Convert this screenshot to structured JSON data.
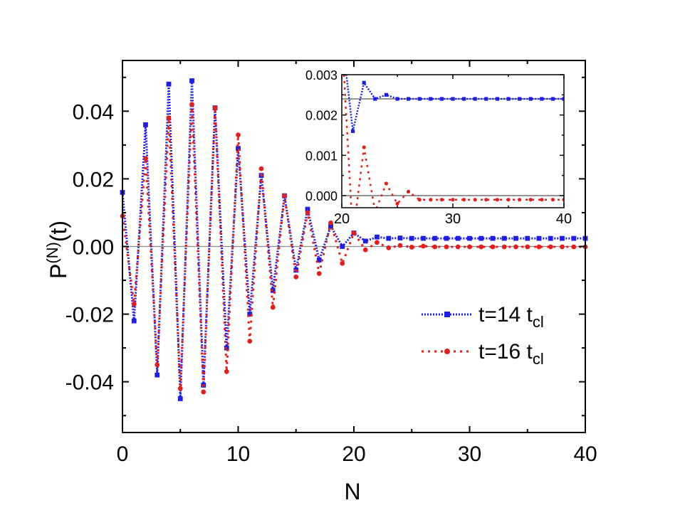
{
  "chart_data": [
    {
      "type": "line",
      "xlabel": "N",
      "ylabel_main": "P",
      "ylabel_sup": "(N)",
      "ylabel_tail": "(t)",
      "xlim": [
        0,
        40
      ],
      "ylim": [
        -0.055,
        0.055
      ],
      "xticks": [
        0,
        10,
        20,
        30,
        40
      ],
      "xtick_labels": [
        "0",
        "10",
        "20",
        "30",
        "40"
      ],
      "yticks": [
        -0.04,
        -0.02,
        0.0,
        0.02,
        0.04
      ],
      "ytick_labels": [
        "-0.04",
        "-0.02",
        "0.00",
        "0.02",
        "0.04"
      ],
      "reference_line_y": 0.0,
      "legend_position": "lower-right",
      "series": [
        {
          "name_main": "t=14 t",
          "name_sub": "cl",
          "color": "#1f1fe0",
          "marker": "square",
          "linestyle": "dotted",
          "x": [
            0,
            1,
            2,
            3,
            4,
            5,
            6,
            7,
            8,
            9,
            10,
            11,
            12,
            13,
            14,
            15,
            16,
            17,
            18,
            19,
            20,
            21,
            22,
            23,
            24,
            25,
            26,
            27,
            28,
            29,
            30,
            31,
            32,
            33,
            34,
            35,
            36,
            37,
            38,
            39,
            40
          ],
          "y": [
            0.016,
            -0.022,
            0.036,
            -0.038,
            0.048,
            -0.045,
            0.049,
            -0.041,
            0.041,
            -0.03,
            0.029,
            -0.02,
            0.021,
            -0.013,
            0.015,
            -0.007,
            0.011,
            -0.004,
            0.006,
            0.0,
            0.004,
            0.0016,
            0.0028,
            0.0024,
            0.0025,
            0.0024,
            0.0024,
            0.0024,
            0.0024,
            0.0024,
            0.0024,
            0.0024,
            0.0024,
            0.0024,
            0.0024,
            0.0024,
            0.0024,
            0.0024,
            0.0024,
            0.0024,
            0.0024
          ]
        },
        {
          "name_main": "t=16 t",
          "name_sub": "cl",
          "color": "#e02020",
          "marker": "circle",
          "linestyle": "dashed",
          "x": [
            0,
            1,
            2,
            3,
            4,
            5,
            6,
            7,
            8,
            9,
            10,
            11,
            12,
            13,
            14,
            15,
            16,
            17,
            18,
            19,
            20,
            21,
            22,
            23,
            24,
            25,
            26,
            27,
            28,
            29,
            30,
            31,
            32,
            33,
            34,
            35,
            36,
            37,
            38,
            39,
            40
          ],
          "y": [
            0.009,
            -0.017,
            0.026,
            -0.035,
            0.038,
            -0.042,
            0.042,
            -0.043,
            0.041,
            -0.037,
            0.033,
            -0.028,
            0.023,
            -0.018,
            0.015,
            -0.009,
            0.01,
            -0.008,
            0.007,
            -0.005,
            0.004,
            -0.001,
            0.0012,
            -0.0004,
            0.0003,
            -0.0002,
            0.0001,
            -0.0001,
            -0.0001,
            -0.0001,
            -0.0001,
            -0.0001,
            -0.0001,
            -0.0001,
            -0.0001,
            -0.0001,
            -0.0001,
            -0.0001,
            -0.0001,
            -0.0001,
            -0.0001
          ]
        }
      ]
    },
    {
      "type": "line",
      "xlim": [
        20,
        40
      ],
      "ylim": [
        -0.0003,
        0.003
      ],
      "xticks": [
        20,
        30,
        40
      ],
      "xtick_labels": [
        "20",
        "30",
        "40"
      ],
      "yticks": [
        0.0,
        0.001,
        0.002,
        0.003
      ],
      "ytick_labels": [
        "0.000",
        "0.001",
        "0.002",
        "0.003"
      ],
      "reference_lines_y": [
        0.0,
        0.0024
      ]
    }
  ]
}
